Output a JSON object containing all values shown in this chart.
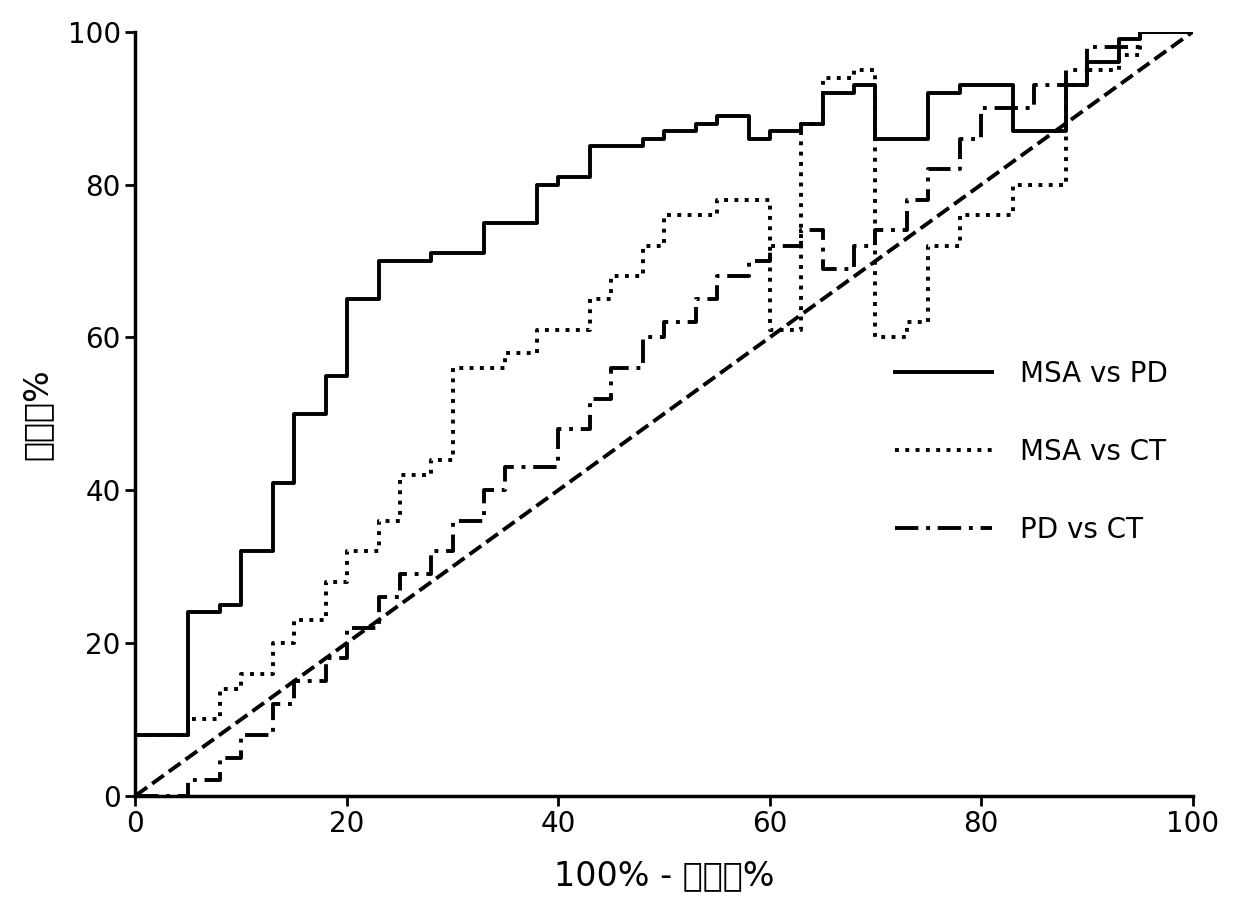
{
  "title": "",
  "xlabel": "100% - 特异性%",
  "ylabel": "灵敏度%",
  "xlim": [
    0,
    100
  ],
  "ylim": [
    0,
    100
  ],
  "xticks": [
    0,
    20,
    40,
    60,
    80,
    100
  ],
  "yticks": [
    0,
    20,
    40,
    60,
    80,
    100
  ],
  "background_color": "#ffffff",
  "line_color": "#000000",
  "linewidth": 2.8,
  "legend_labels": [
    "MSA vs PD",
    "MSA vs CT",
    "PD vs CT"
  ],
  "msa_vs_pd_x": [
    0,
    0,
    5,
    5,
    8,
    8,
    10,
    10,
    13,
    13,
    15,
    15,
    18,
    18,
    20,
    20,
    23,
    23,
    28,
    28,
    33,
    33,
    38,
    38,
    40,
    40,
    43,
    43,
    48,
    48,
    50,
    50,
    53,
    53,
    55,
    55,
    58,
    58,
    60,
    60,
    63,
    63,
    65,
    65,
    68,
    68,
    70,
    70,
    75,
    75,
    78,
    78,
    83,
    83,
    88,
    88,
    90,
    90,
    93,
    93,
    95,
    95,
    100,
    100
  ],
  "msa_vs_pd_y": [
    0,
    8,
    8,
    24,
    24,
    25,
    25,
    32,
    32,
    41,
    41,
    50,
    50,
    55,
    55,
    65,
    65,
    70,
    70,
    71,
    71,
    75,
    75,
    80,
    80,
    81,
    81,
    85,
    85,
    86,
    86,
    87,
    87,
    88,
    88,
    89,
    89,
    86,
    86,
    87,
    87,
    88,
    88,
    92,
    92,
    93,
    93,
    86,
    86,
    92,
    92,
    93,
    93,
    87,
    87,
    93,
    93,
    96,
    96,
    99,
    99,
    100,
    100,
    100
  ],
  "msa_vs_ct_x": [
    0,
    0,
    5,
    5,
    8,
    8,
    10,
    10,
    13,
    13,
    15,
    15,
    18,
    18,
    20,
    20,
    23,
    23,
    25,
    25,
    28,
    28,
    30,
    30,
    35,
    35,
    38,
    38,
    43,
    43,
    45,
    45,
    48,
    48,
    50,
    50,
    55,
    55,
    60,
    60,
    63,
    63,
    65,
    65,
    68,
    68,
    70,
    70,
    73,
    73,
    75,
    75,
    78,
    78,
    83,
    83,
    88,
    88,
    90,
    90,
    93,
    93,
    95,
    95,
    100,
    100
  ],
  "msa_vs_ct_y": [
    0,
    8,
    8,
    10,
    10,
    14,
    14,
    16,
    16,
    20,
    20,
    23,
    23,
    28,
    28,
    32,
    32,
    36,
    36,
    42,
    42,
    44,
    44,
    56,
    56,
    58,
    58,
    61,
    61,
    65,
    65,
    68,
    68,
    72,
    72,
    76,
    76,
    78,
    78,
    61,
    61,
    88,
    88,
    94,
    94,
    95,
    95,
    60,
    60,
    62,
    62,
    72,
    72,
    76,
    76,
    80,
    80,
    93,
    93,
    95,
    95,
    97,
    97,
    100,
    100,
    100
  ],
  "pd_vs_ct_x": [
    0,
    0,
    5,
    5,
    8,
    8,
    10,
    10,
    13,
    13,
    15,
    15,
    18,
    18,
    20,
    20,
    23,
    23,
    25,
    25,
    28,
    28,
    30,
    30,
    33,
    33,
    35,
    35,
    40,
    40,
    43,
    43,
    45,
    45,
    48,
    48,
    50,
    50,
    53,
    53,
    55,
    55,
    58,
    58,
    60,
    60,
    63,
    63,
    65,
    65,
    68,
    68,
    70,
    70,
    73,
    73,
    75,
    75,
    78,
    78,
    80,
    80,
    85,
    85,
    88,
    88,
    90,
    90,
    95,
    95,
    100,
    100
  ],
  "pd_vs_ct_y": [
    0,
    0,
    0,
    2,
    2,
    5,
    5,
    8,
    8,
    12,
    12,
    15,
    15,
    18,
    18,
    22,
    22,
    26,
    26,
    29,
    29,
    32,
    32,
    36,
    36,
    40,
    40,
    43,
    43,
    48,
    48,
    52,
    52,
    56,
    56,
    60,
    60,
    62,
    62,
    65,
    65,
    68,
    68,
    70,
    70,
    72,
    72,
    74,
    74,
    69,
    69,
    72,
    72,
    74,
    74,
    78,
    78,
    82,
    82,
    86,
    86,
    90,
    90,
    93,
    93,
    95,
    95,
    98,
    98,
    100,
    100,
    100
  ]
}
